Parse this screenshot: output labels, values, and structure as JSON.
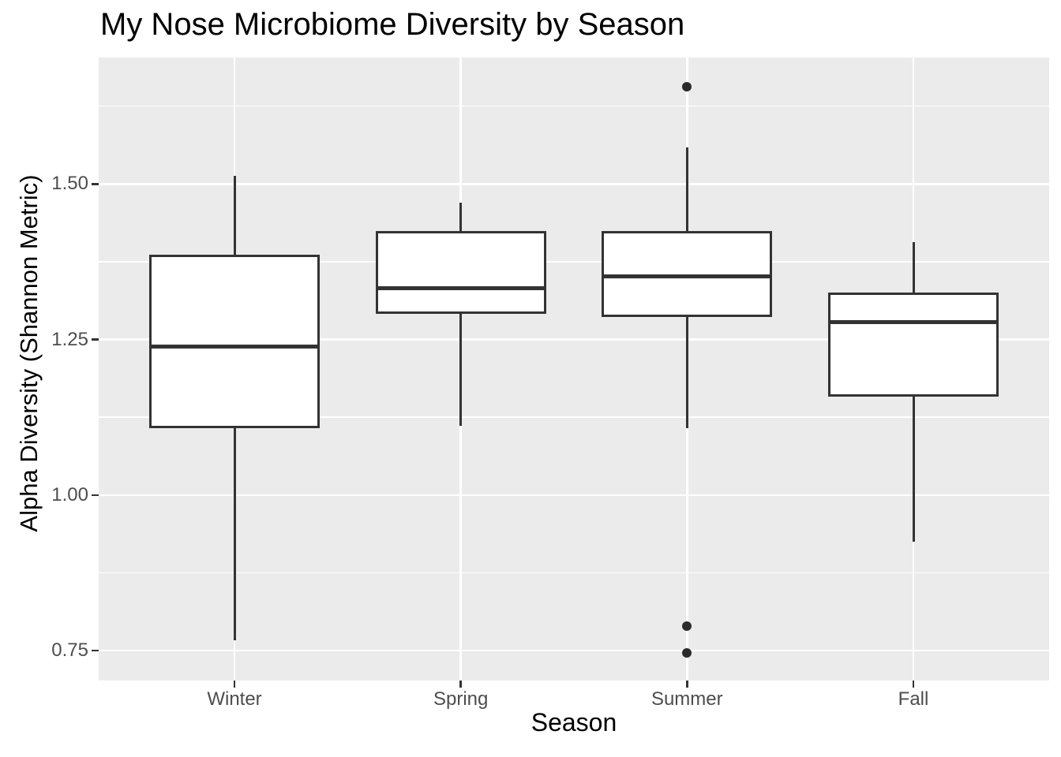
{
  "chart_data": {
    "type": "boxplot",
    "title": "My Nose Microbiome Diversity by Season",
    "xlabel": "Season",
    "ylabel": "Alpha Diversity (Shannon Metric)",
    "categories": [
      "Winter",
      "Spring",
      "Summer",
      "Fall"
    ],
    "y_ticks": [
      0.75,
      1.0,
      1.25,
      1.5
    ],
    "y_tick_labels": [
      "0.75",
      "1.00",
      "1.25",
      "1.50"
    ],
    "y_minor_gridlines": [
      0.875,
      1.125,
      1.375,
      1.625
    ],
    "ylim": [
      0.702,
      1.703
    ],
    "grid": "horizontal major+minor, vertical major at each category",
    "legend": "none",
    "series": [
      {
        "name": "Winter",
        "whisker_low": 0.766,
        "q1": 1.107,
        "median": 1.239,
        "q3": 1.386,
        "whisker_high": 1.513,
        "outliers": []
      },
      {
        "name": "Spring",
        "whisker_low": 1.111,
        "q1": 1.291,
        "median": 1.333,
        "q3": 1.424,
        "whisker_high": 1.47,
        "outliers": []
      },
      {
        "name": "Summer",
        "whisker_low": 1.107,
        "q1": 1.286,
        "median": 1.352,
        "q3": 1.424,
        "whisker_high": 1.558,
        "outliers": [
          1.656,
          0.79,
          0.747
        ]
      },
      {
        "name": "Fall",
        "whisker_low": 0.925,
        "q1": 1.158,
        "median": 1.278,
        "q3": 1.325,
        "whisker_high": 1.407,
        "outliers": []
      }
    ],
    "style": {
      "panel_bg": "#EBEBEB",
      "grid_color": "#FFFFFF",
      "box_fill": "#FFFFFF",
      "box_stroke": "#333333",
      "outlier_color": "#2B2B2B",
      "tick_mark_color": "#333333",
      "tick_label_color": "#4D4D4D",
      "text_color": "#000000"
    }
  }
}
